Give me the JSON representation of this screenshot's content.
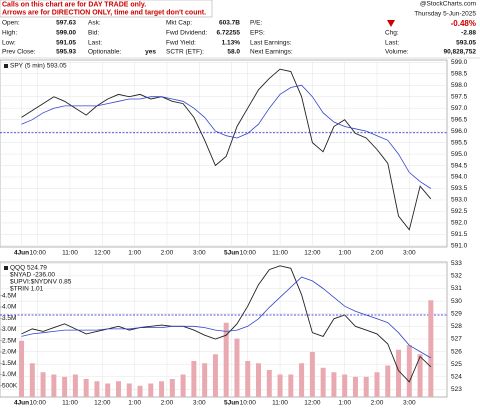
{
  "header": {
    "notice": [
      "Calls on this chart are for DAY TRADE only.",
      "Arrows are for DIRECTION ONLY, time and target don't count."
    ],
    "columns": [
      [
        {
          "label": "Open:",
          "value": "597.63"
        },
        {
          "label": "High:",
          "value": "599.00"
        },
        {
          "label": "Low:",
          "value": "591.05"
        },
        {
          "label": "Prev Close:",
          "value": "595.93"
        }
      ],
      [
        {
          "label": "Ask:"
        },
        {
          "label": "Bid:"
        },
        {
          "label": "Last:"
        },
        {
          "label": "Optionable:",
          "value": "yes"
        }
      ],
      [
        {
          "label": "Mkt Cap:",
          "value": "603.7B"
        },
        {
          "label": "Fwd Dividend:",
          "value": "6.72255"
        },
        {
          "label": "Fwd Yield:",
          "value": "1.13%"
        },
        {
          "label": "SCTR (ETF):",
          "value": "58.0"
        }
      ],
      [
        {
          "label": "P/E:"
        },
        {
          "label": "EPS:"
        },
        {
          "label": "Last Earnings:"
        },
        {
          "label": "Next Earnings:"
        }
      ]
    ],
    "date": "Thursday 5-Jun-2025",
    "change_pct": "-0.48%",
    "right": [
      {
        "label": "Chg:",
        "value": "-2.88"
      },
      {
        "label": "Last:",
        "value": "593.05"
      },
      {
        "label": "Volume:",
        "value": "90,828,752"
      }
    ],
    "source": "@StockCharts.com"
  },
  "chart_data": [
    {
      "type": "line",
      "x": [
        0,
        4,
        8,
        12,
        16,
        20,
        24,
        28,
        32,
        36,
        40,
        44,
        48,
        52,
        56,
        60,
        64,
        68,
        72,
        76,
        80,
        84,
        88,
        92,
        96,
        100,
        104,
        108,
        112,
        116,
        120,
        124,
        128,
        132,
        136,
        140,
        144,
        148,
        152
      ],
      "xlim": [
        -8,
        158
      ],
      "xticks": [
        {
          "value": 0,
          "label": "4Jun"
        },
        {
          "value": 6,
          "label": "10:00"
        },
        {
          "value": 18,
          "label": "11:00"
        },
        {
          "value": 30,
          "label": "12:00"
        },
        {
          "value": 42,
          "label": "1:00"
        },
        {
          "value": 54,
          "label": "2:00"
        },
        {
          "value": 66,
          "label": "3:00"
        },
        {
          "value": 78,
          "label": "5Jun"
        },
        {
          "value": 84,
          "label": "10:00"
        },
        {
          "value": 96,
          "label": "11:00"
        },
        {
          "value": 108,
          "label": "12:00"
        },
        {
          "value": 120,
          "label": "1:00"
        },
        {
          "value": 132,
          "label": "2:00"
        },
        {
          "value": 144,
          "label": "3:00"
        }
      ],
      "ylim": [
        590.95,
        599.1
      ],
      "yticks": [
        {
          "value": 591,
          "label": "591.0"
        },
        {
          "value": 591.5,
          "label": "591.5"
        },
        {
          "value": 592,
          "label": "592.0"
        },
        {
          "value": 592.5,
          "label": "592.5"
        },
        {
          "value": 593,
          "label": "593.0"
        },
        {
          "value": 593.5,
          "label": "593.5"
        },
        {
          "value": 594,
          "label": "594.0"
        },
        {
          "value": 594.5,
          "label": "594.5"
        },
        {
          "value": 595,
          "label": "595.0"
        },
        {
          "value": 595.5,
          "label": "595.5"
        },
        {
          "value": 596,
          "label": "596.0"
        },
        {
          "value": 596.5,
          "label": "596.5"
        },
        {
          "value": 597,
          "label": "597.0"
        },
        {
          "value": 597.5,
          "label": "597.5"
        },
        {
          "value": 598,
          "label": "598.0"
        },
        {
          "value": 598.5,
          "label": "598.5"
        },
        {
          "value": 599,
          "label": "599.0"
        }
      ],
      "grid": true,
      "ref_line": 595.93,
      "ref_color": "#1a1acc",
      "series": [
        {
          "name": "SPY (5 min) 593.05",
          "color": "#222222",
          "values": [
            596.6,
            596.9,
            597.2,
            597.5,
            597.3,
            597.0,
            596.7,
            597.1,
            597.4,
            597.6,
            597.5,
            597.6,
            597.4,
            597.5,
            597.3,
            597.2,
            596.6,
            595.6,
            594.5,
            594.9,
            596.2,
            597.0,
            597.8,
            598.3,
            598.7,
            598.6,
            597.5,
            595.5,
            595.1,
            596.2,
            596.5,
            595.9,
            595.7,
            595.2,
            594.6,
            592.3,
            591.7,
            593.6,
            593.05
          ]
        },
        {
          "color": "#3344cc",
          "values": [
            596.3,
            596.5,
            596.8,
            597.0,
            597.1,
            597.1,
            597.1,
            597.1,
            597.2,
            597.3,
            597.4,
            597.4,
            597.5,
            597.5,
            597.4,
            597.3,
            597.0,
            596.6,
            596.0,
            595.8,
            595.7,
            595.9,
            596.3,
            597.0,
            597.6,
            597.9,
            598.0,
            597.5,
            596.8,
            596.4,
            596.2,
            596.1,
            596.0,
            595.8,
            595.6,
            595.0,
            594.2,
            593.8,
            593.5
          ]
        }
      ]
    },
    {
      "type": "line",
      "x": [
        0,
        4,
        8,
        12,
        16,
        20,
        24,
        28,
        32,
        36,
        40,
        44,
        48,
        52,
        56,
        60,
        64,
        68,
        72,
        76,
        80,
        84,
        88,
        92,
        96,
        100,
        104,
        108,
        112,
        116,
        120,
        124,
        128,
        132,
        136,
        140,
        144,
        148,
        152
      ],
      "xlim": [
        -8,
        158
      ],
      "xticks": [
        {
          "value": 0,
          "label": "4Jun"
        },
        {
          "value": 6,
          "label": "10:00"
        },
        {
          "value": 18,
          "label": "11:00"
        },
        {
          "value": 30,
          "label": "12:00"
        },
        {
          "value": 42,
          "label": "1:00"
        },
        {
          "value": 54,
          "label": "2:00"
        },
        {
          "value": 66,
          "label": "3:00"
        },
        {
          "value": 78,
          "label": "5Jun"
        },
        {
          "value": 84,
          "label": "10:00"
        },
        {
          "value": 96,
          "label": "11:00"
        },
        {
          "value": 108,
          "label": "12:00"
        },
        {
          "value": 120,
          "label": "1:00"
        },
        {
          "value": 132,
          "label": "2:00"
        },
        {
          "value": 144,
          "label": "3:00"
        }
      ],
      "ylim": [
        0,
        6000000
      ],
      "yticks": [
        {
          "value": 500000,
          "label": "500K"
        },
        {
          "value": 1000000,
          "label": "1.0M"
        },
        {
          "value": 1500000,
          "label": "1.5M"
        },
        {
          "value": 2000000,
          "label": "2.0M"
        },
        {
          "value": 2500000,
          "label": "2.5M"
        },
        {
          "value": 3000000,
          "label": "3.0M"
        },
        {
          "value": 3500000,
          "label": "3.5M"
        },
        {
          "value": 4000000,
          "label": "4.0M"
        },
        {
          "value": 4500000,
          "label": "4.5M"
        }
      ],
      "y2lim": [
        522.4,
        533.1
      ],
      "y2ticks": [
        523,
        524,
        525,
        526,
        527,
        528,
        529,
        530,
        531,
        532,
        533
      ],
      "grid": true,
      "ref_line": 528.9,
      "ref_axis": "y2",
      "ref_color": "#1a1acc",
      "legend_texts": [
        "$NYAD -236.00",
        "$UPVI:$NYDNV 0.85",
        "$TRIN 1.01"
      ],
      "series": [
        {
          "type": "bar",
          "color": "#e9a9b0",
          "values": [
            2500000,
            1500000,
            1100000,
            1000000,
            900000,
            1000000,
            800000,
            700000,
            600000,
            700000,
            600000,
            500000,
            600000,
            700000,
            800000,
            1000000,
            1600000,
            1500000,
            1900000,
            3300000,
            2600000,
            1600000,
            1500000,
            1200000,
            1000000,
            1000000,
            1500000,
            2000000,
            1300000,
            1100000,
            1000000,
            900000,
            900000,
            1100000,
            1400000,
            2100000,
            2300000,
            1900000,
            4300000
          ]
        },
        {
          "name": "QQQ 524.79",
          "axis": "y2",
          "color": "#222222",
          "values": [
            527.4,
            527.8,
            527.6,
            527.9,
            528.2,
            527.8,
            527.4,
            527.6,
            527.8,
            528.0,
            527.7,
            527.9,
            528.0,
            528.1,
            528.0,
            528.0,
            527.7,
            527.3,
            527.0,
            527.3,
            528.2,
            529.6,
            531.3,
            532.5,
            532.8,
            532.6,
            530.5,
            527.5,
            527.2,
            528.6,
            528.9,
            528.0,
            527.7,
            527.4,
            526.6,
            524.5,
            523.6,
            525.6,
            524.79
          ]
        },
        {
          "axis": "y2",
          "color": "#3344cc",
          "values": [
            527.2,
            527.4,
            527.5,
            527.6,
            527.7,
            527.7,
            527.7,
            527.7,
            527.8,
            527.8,
            527.8,
            527.9,
            527.9,
            527.9,
            528.0,
            528.0,
            528.0,
            527.9,
            527.7,
            527.6,
            527.7,
            528.0,
            528.6,
            529.5,
            530.3,
            531.1,
            531.9,
            531.6,
            531.0,
            530.3,
            529.6,
            529.2,
            528.9,
            528.6,
            528.3,
            527.5,
            526.5,
            526.0,
            525.5
          ]
        }
      ]
    }
  ]
}
